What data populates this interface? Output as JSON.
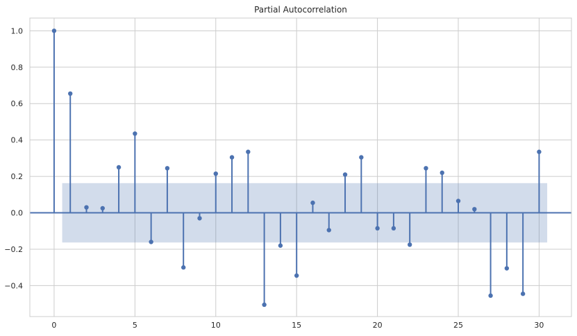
{
  "chart_data": {
    "type": "stem",
    "title": "Partial Autocorrelation",
    "xlabel": "",
    "ylabel": "",
    "xlim": [
      -1.5,
      32
    ],
    "ylim": [
      -0.57,
      1.07
    ],
    "x_ticks": [
      0,
      5,
      10,
      15,
      20,
      25,
      30
    ],
    "y_ticks": [
      -0.4,
      -0.2,
      0.0,
      0.2,
      0.4,
      0.6,
      0.8,
      1.0
    ],
    "y_tick_labels": [
      "−0.4",
      "−0.2",
      "0.0",
      "0.2",
      "0.4",
      "0.6",
      "0.8",
      "1.0"
    ],
    "grid": true,
    "confidence_band": {
      "x_start": 0.5,
      "x_end": 30.5,
      "lower": -0.163,
      "upper": 0.163
    },
    "colors": {
      "stem": "#4c72b0",
      "band": "#4c72b0",
      "baseline": "#4c72b0"
    },
    "lags": [
      0,
      1,
      2,
      3,
      4,
      5,
      6,
      7,
      8,
      9,
      10,
      11,
      12,
      13,
      14,
      15,
      16,
      17,
      18,
      19,
      20,
      21,
      22,
      23,
      24,
      25,
      26,
      27,
      28,
      29,
      30
    ],
    "values": [
      1.0,
      0.655,
      0.03,
      0.025,
      0.25,
      0.435,
      -0.16,
      0.245,
      -0.3,
      -0.03,
      0.215,
      0.305,
      0.335,
      -0.505,
      -0.18,
      -0.345,
      0.055,
      -0.095,
      0.21,
      0.305,
      -0.085,
      -0.085,
      -0.175,
      0.245,
      0.22,
      0.065,
      0.02,
      -0.455,
      -0.305,
      -0.445,
      0.335
    ]
  }
}
